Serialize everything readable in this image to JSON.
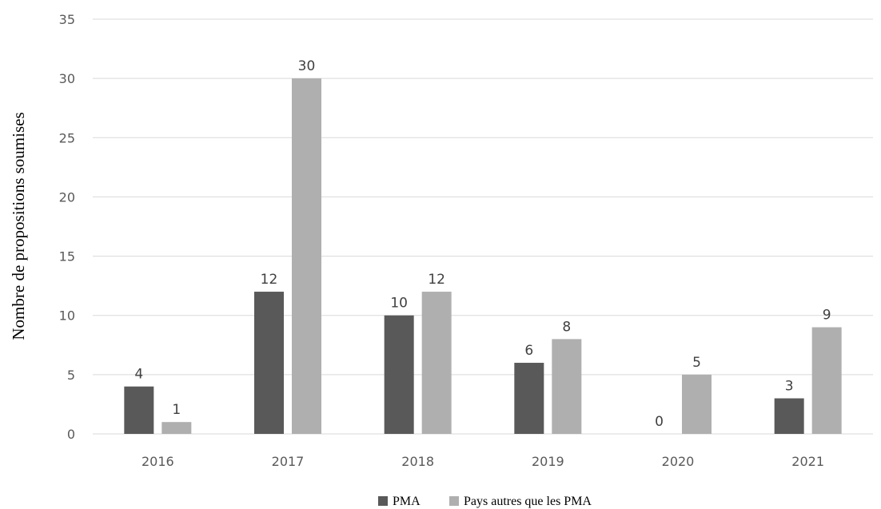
{
  "chart_data": {
    "type": "bar",
    "title": "",
    "xlabel": "",
    "ylabel": "Nombre de propositions soumises",
    "categories": [
      "2016",
      "2017",
      "2018",
      "2019",
      "2020",
      "2021"
    ],
    "series": [
      {
        "name": "PMA",
        "values": [
          4,
          12,
          10,
          6,
          0,
          3
        ],
        "color": "#595959"
      },
      {
        "name": "Pays autres que les PMA",
        "values": [
          1,
          30,
          12,
          8,
          5,
          9
        ],
        "color": "#afafaf"
      }
    ],
    "ylim": [
      0,
      35
    ],
    "yticks": [
      0,
      5,
      10,
      15,
      20,
      25,
      30,
      35
    ],
    "grid": true,
    "legend": "bottom-center",
    "data_labels": true
  }
}
